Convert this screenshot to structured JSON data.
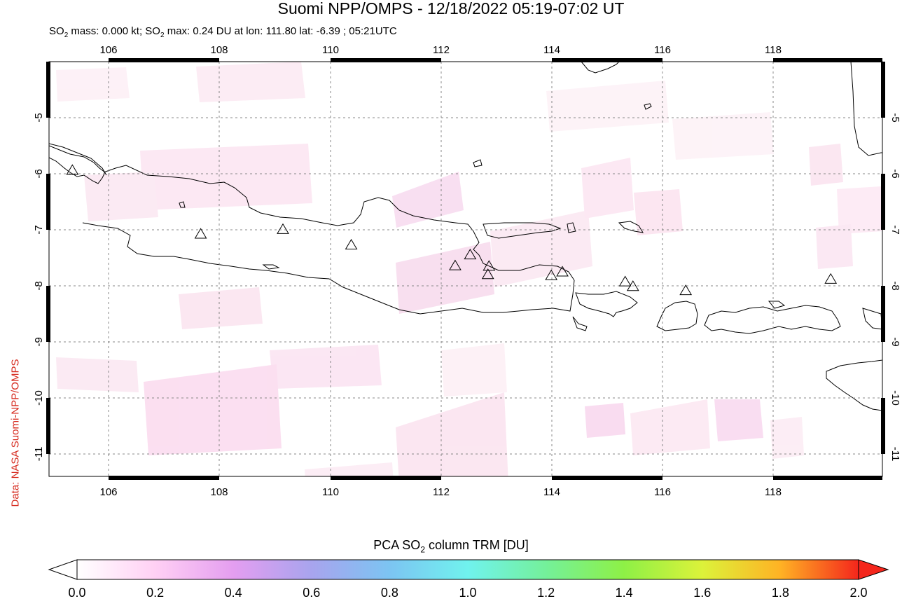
{
  "title": "Suomi NPP/OMPS - 12/18/2022 05:19-07:02 UT",
  "subtitle": {
    "prefix": "SO",
    "sub": "2",
    "mid": " mass: 0.000 kt; SO",
    "sub2": "2",
    "rest": " max: 0.24 DU at lon: 111.80 lat: -6.39 ; 05:21UTC"
  },
  "credit": "Data: NASA Suomi-NPP/OMPS",
  "map": {
    "lon_range": [
      105,
      120
    ],
    "lat_range": [
      -12,
      -4
    ],
    "lon_ticks": [
      "106",
      "108",
      "110",
      "112",
      "114",
      "116",
      "118"
    ],
    "lat_ticks": [
      "-5",
      "-6",
      "-7",
      "-8",
      "-9",
      "-10",
      "-11"
    ],
    "volcanoes": [
      {
        "lon": 105.42,
        "lat": -6.1
      },
      {
        "lon": 107.73,
        "lat": -7.33
      },
      {
        "lon": 109.21,
        "lat": -7.24
      },
      {
        "lon": 110.44,
        "lat": -7.54
      },
      {
        "lon": 112.31,
        "lat": -7.94
      },
      {
        "lon": 112.58,
        "lat": -7.73
      },
      {
        "lon": 112.92,
        "lat": -7.95
      },
      {
        "lon": 112.9,
        "lat": -8.11
      },
      {
        "lon": 114.04,
        "lat": -8.13
      },
      {
        "lon": 114.24,
        "lat": -8.06
      },
      {
        "lon": 115.37,
        "lat": -8.25
      },
      {
        "lon": 115.51,
        "lat": -8.34
      },
      {
        "lon": 116.46,
        "lat": -8.42
      },
      {
        "lon": 119.07,
        "lat": -8.2
      }
    ]
  },
  "colorbar": {
    "label_prefix": "PCA SO",
    "label_sub": "2",
    "label_rest": " column TRM [DU]",
    "ticks": [
      "0.0",
      "0.2",
      "0.4",
      "0.6",
      "0.8",
      "1.0",
      "1.2",
      "1.4",
      "1.6",
      "1.8",
      "2.0"
    ],
    "colors": [
      "#ffffff",
      "#ffd0f4",
      "#e49ef0",
      "#a8a4ee",
      "#7cc4f2",
      "#70f2ee",
      "#74f09a",
      "#8ef046",
      "#dcf23a",
      "#ffb224",
      "#f4261c"
    ]
  }
}
